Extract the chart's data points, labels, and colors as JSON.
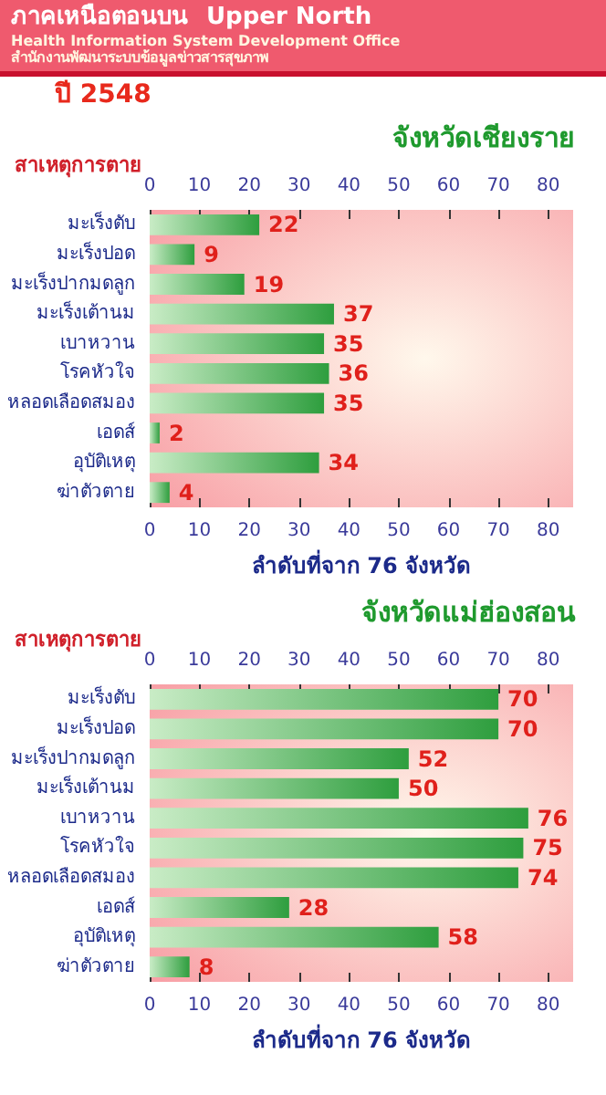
{
  "chart_data": [
    {
      "type": "bar",
      "orientation": "horizontal",
      "title": "จังหวัดเชียงราย",
      "ylabel": "สาเหตุการตาย",
      "xlabel": "ลำดับที่จาก 76 จังหวัด",
      "annotations": [
        "ภาคเหนือตอนบน",
        "Upper North",
        "Health Information System Development Office",
        "สำนักงานพัฒนาระบบข้อมูลข่าวสารสุขภาพ",
        "ปี 2548"
      ],
      "categories": [
        "มะเร็งตับ",
        "มะเร็งปอด",
        "มะเร็งปากมดลูก",
        "มะเร็งเต้านม",
        "เบาหวาน",
        "โรคหัวใจ",
        "หลอดเลือดสมอง",
        "เอดส์",
        "อุบัติเหตุ",
        "ฆ่าตัวตาย"
      ],
      "values": [
        22,
        9,
        19,
        37,
        35,
        36,
        35,
        2,
        34,
        4
      ],
      "color": "#2e9e3e",
      "data_labels": true,
      "xlim": [
        0,
        85
      ],
      "xticks": [
        0,
        10,
        20,
        30,
        40,
        50,
        60,
        70,
        80
      ],
      "x2lim": [
        0,
        85
      ],
      "x2ticks": [
        0,
        10,
        20,
        30,
        40,
        50,
        60,
        70,
        80
      ],
      "grid": false
    },
    {
      "type": "bar",
      "orientation": "horizontal",
      "title": "จังหวัดแม่ฮ่องสอน",
      "ylabel": "สาเหตุการตาย",
      "xlabel": "ลำดับที่จาก 76 จังหวัด",
      "categories": [
        "มะเร็งตับ",
        "มะเร็งปอด",
        "มะเร็งปากมดลูก",
        "มะเร็งเต้านม",
        "เบาหวาน",
        "โรคหัวใจ",
        "หลอดเลือดสมอง",
        "เอดส์",
        "อุบัติเหตุ",
        "ฆ่าตัวตาย"
      ],
      "values": [
        70,
        70,
        52,
        50,
        76,
        75,
        74,
        28,
        58,
        8
      ],
      "color": "#2e9e3e",
      "data_labels": true,
      "xlim": [
        0,
        85
      ],
      "xticks": [
        0,
        10,
        20,
        30,
        40,
        50,
        60,
        70,
        80
      ],
      "x2lim": [
        0,
        85
      ],
      "x2ticks": [
        0,
        10,
        20,
        30,
        40,
        50,
        60,
        70,
        80
      ],
      "grid": false
    }
  ]
}
